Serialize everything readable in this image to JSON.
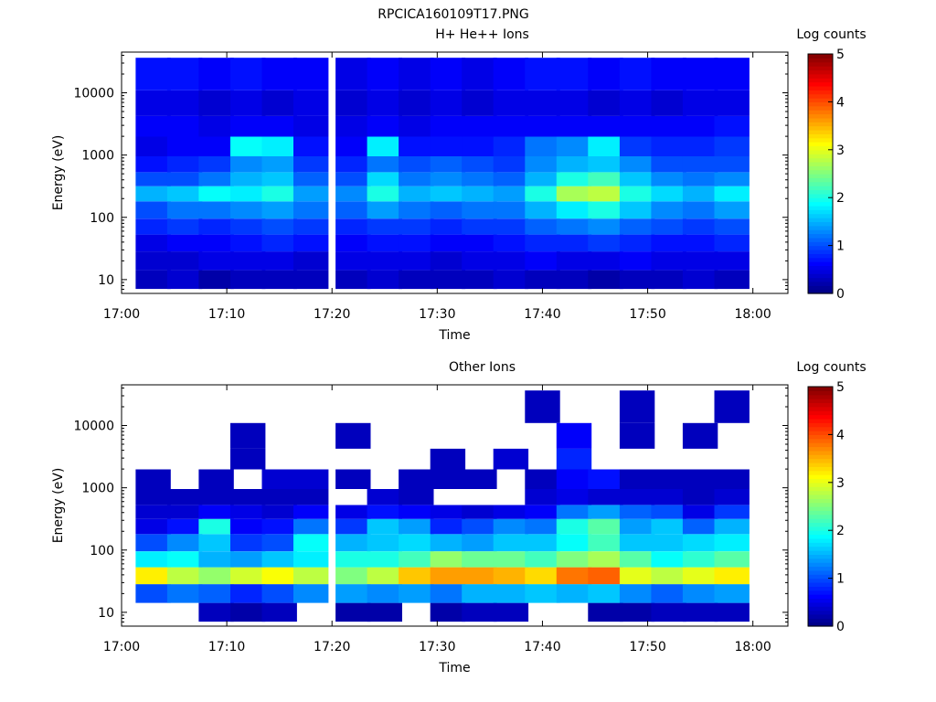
{
  "figure_title": "RPCICA160109T17.PNG",
  "chart_data": [
    {
      "type": "heatmap",
      "title": "H+ He++ Ions",
      "xlabel": "Time",
      "ylabel": "Energy (eV)",
      "x_ticks": [
        "17:00",
        "17:10",
        "17:20",
        "17:30",
        "17:40",
        "17:50",
        "18:00"
      ],
      "y_ticks": [
        "10",
        "100",
        "1000",
        "10000"
      ],
      "y_scale": "log",
      "ylim": [
        6,
        45000
      ],
      "colorbar": {
        "label": "Log counts",
        "min": 0,
        "max": 5,
        "ticks": [
          "0",
          "1",
          "2",
          "3",
          "4",
          "5"
        ]
      },
      "time_bins": [
        "17:03",
        "17:06",
        "17:09",
        "17:12",
        "17:15",
        "17:18",
        "17:22",
        "17:25",
        "17:28",
        "17:31",
        "17:34",
        "17:37",
        "17:40",
        "17:43",
        "17:46",
        "17:49",
        "17:52",
        "17:55",
        "17:58"
      ],
      "energy_bins_eV": [
        10,
        20,
        40,
        70,
        130,
        250,
        400,
        700,
        1300,
        3000,
        6000,
        20000
      ],
      "log_counts": [
        [
          0.3,
          0.4,
          0.5,
          0.8,
          1.0,
          1.5,
          1.0,
          0.7,
          0.5,
          0.6,
          0.5,
          0.7
        ],
        [
          0.4,
          0.4,
          0.6,
          0.9,
          1.2,
          1.6,
          1.0,
          0.8,
          0.6,
          0.6,
          0.5,
          0.7
        ],
        [
          0.2,
          0.5,
          0.6,
          0.8,
          1.2,
          1.9,
          1.2,
          0.9,
          0.6,
          0.5,
          0.4,
          0.6
        ],
        [
          0.3,
          0.5,
          0.7,
          0.9,
          1.3,
          1.8,
          1.5,
          1.3,
          1.9,
          0.6,
          0.5,
          0.7
        ],
        [
          0.3,
          0.5,
          0.8,
          1.0,
          1.4,
          2.0,
          1.6,
          1.4,
          1.8,
          0.6,
          0.4,
          0.6
        ],
        [
          0.3,
          0.4,
          0.7,
          0.9,
          1.2,
          1.4,
          1.1,
          0.9,
          0.7,
          0.5,
          0.5,
          0.6
        ],
        [
          0.3,
          0.5,
          0.6,
          0.8,
          1.1,
          1.3,
          1.0,
          0.8,
          0.6,
          0.5,
          0.4,
          0.5
        ],
        [
          0.4,
          0.5,
          0.7,
          0.9,
          1.4,
          2.0,
          1.7,
          1.2,
          1.8,
          0.6,
          0.5,
          0.6
        ],
        [
          0.3,
          0.5,
          0.7,
          0.9,
          1.2,
          1.5,
          1.2,
          1.0,
          0.7,
          0.5,
          0.4,
          0.5
        ],
        [
          0.3,
          0.4,
          0.6,
          0.8,
          1.1,
          1.6,
          1.3,
          1.1,
          0.7,
          0.6,
          0.5,
          0.6
        ],
        [
          0.3,
          0.5,
          0.6,
          0.9,
          1.2,
          1.5,
          1.2,
          1.0,
          0.7,
          0.6,
          0.4,
          0.5
        ],
        [
          0.4,
          0.5,
          0.7,
          0.9,
          1.2,
          1.4,
          1.1,
          0.9,
          0.8,
          0.6,
          0.5,
          0.6
        ],
        [
          0.3,
          0.6,
          0.8,
          1.1,
          1.5,
          2.0,
          1.5,
          1.3,
          1.2,
          0.6,
          0.5,
          0.7
        ],
        [
          0.3,
          0.5,
          0.8,
          1.2,
          1.8,
          2.7,
          2.0,
          1.5,
          1.3,
          0.6,
          0.5,
          0.7
        ],
        [
          0.2,
          0.5,
          0.9,
          1.3,
          2.0,
          2.8,
          2.2,
          1.6,
          1.8,
          0.6,
          0.4,
          0.6
        ],
        [
          0.3,
          0.6,
          0.8,
          1.1,
          1.6,
          2.0,
          1.6,
          1.3,
          0.9,
          0.6,
          0.5,
          0.7
        ],
        [
          0.3,
          0.5,
          0.7,
          1.0,
          1.3,
          1.7,
          1.3,
          1.0,
          0.8,
          0.6,
          0.4,
          0.6
        ],
        [
          0.4,
          0.5,
          0.7,
          0.9,
          1.2,
          1.5,
          1.2,
          1.0,
          0.8,
          0.6,
          0.5,
          0.6
        ],
        [
          0.3,
          0.5,
          0.8,
          1.0,
          1.4,
          1.8,
          1.3,
          1.0,
          0.9,
          0.7,
          0.5,
          0.6
        ]
      ]
    },
    {
      "type": "heatmap",
      "title": "Other Ions",
      "xlabel": "Time",
      "ylabel": "Energy (eV)",
      "x_ticks": [
        "17:00",
        "17:10",
        "17:20",
        "17:30",
        "17:40",
        "17:50",
        "18:00"
      ],
      "y_ticks": [
        "10",
        "100",
        "1000",
        "10000"
      ],
      "y_scale": "log",
      "ylim": [
        6,
        45000
      ],
      "colorbar": {
        "label": "Log counts",
        "min": 0,
        "max": 5,
        "ticks": [
          "0",
          "1",
          "2",
          "3",
          "4",
          "5"
        ]
      },
      "time_bins": [
        "17:03",
        "17:06",
        "17:09",
        "17:12",
        "17:15",
        "17:18",
        "17:22",
        "17:25",
        "17:28",
        "17:31",
        "17:34",
        "17:37",
        "17:40",
        "17:43",
        "17:46",
        "17:49",
        "17:52",
        "17:55",
        "17:58"
      ],
      "energy_bins_eV": [
        10,
        20,
        40,
        70,
        130,
        250,
        400,
        700,
        1300,
        3000,
        6000,
        20000
      ],
      "log_counts": [
        [
          null,
          1.0,
          3.2,
          1.8,
          1.0,
          0.5,
          0.4,
          0.3,
          0.3,
          null,
          null,
          null
        ],
        [
          null,
          1.2,
          2.8,
          1.9,
          1.3,
          0.7,
          0.4,
          0.3,
          null,
          null,
          null,
          null
        ],
        [
          0.3,
          1.1,
          2.6,
          1.5,
          1.6,
          2.0,
          0.6,
          0.3,
          0.3,
          null,
          null,
          null
        ],
        [
          0.2,
          0.8,
          2.9,
          1.4,
          0.9,
          0.6,
          0.5,
          0.3,
          null,
          0.3,
          0.3,
          null
        ],
        [
          0.3,
          1.0,
          3.1,
          1.6,
          1.0,
          0.7,
          0.4,
          0.3,
          0.4,
          null,
          null,
          null
        ],
        [
          null,
          1.3,
          2.8,
          1.8,
          1.9,
          1.2,
          0.6,
          0.3,
          0.4,
          null,
          null,
          null
        ],
        [
          0.2,
          1.4,
          2.5,
          2.0,
          1.5,
          0.9,
          0.5,
          null,
          0.3,
          null,
          0.3,
          null
        ],
        [
          0.2,
          1.3,
          2.8,
          2.0,
          1.6,
          1.6,
          0.7,
          0.4,
          null,
          null,
          null,
          null
        ],
        [
          null,
          1.4,
          3.4,
          2.2,
          1.7,
          1.4,
          0.6,
          0.3,
          0.3,
          null,
          null,
          null
        ],
        [
          0.2,
          1.2,
          3.6,
          2.6,
          1.5,
          0.8,
          0.5,
          null,
          0.3,
          0.3,
          null,
          null
        ],
        [
          0.3,
          1.5,
          3.6,
          2.4,
          1.4,
          1.0,
          0.4,
          null,
          0.3,
          null,
          null,
          null
        ],
        [
          0.3,
          1.5,
          3.5,
          2.4,
          1.6,
          1.3,
          0.5,
          null,
          null,
          0.4,
          null,
          null
        ],
        [
          null,
          1.6,
          3.3,
          2.2,
          1.6,
          1.2,
          0.6,
          0.4,
          0.3,
          null,
          null,
          0.3
        ],
        [
          null,
          1.5,
          3.8,
          2.5,
          1.9,
          2.0,
          1.2,
          0.5,
          0.6,
          0.8,
          0.6,
          null
        ],
        [
          0.2,
          1.6,
          3.9,
          2.7,
          2.2,
          2.3,
          1.4,
          0.4,
          0.7,
          null,
          null,
          null
        ],
        [
          0.2,
          1.3,
          3.0,
          2.3,
          1.6,
          1.4,
          1.1,
          0.4,
          0.3,
          null,
          0.3,
          0.3
        ],
        [
          0.3,
          1.1,
          2.8,
          1.9,
          1.6,
          1.6,
          1.0,
          0.4,
          0.3,
          null,
          null,
          null
        ],
        [
          0.3,
          1.3,
          3.0,
          2.1,
          1.7,
          1.1,
          0.5,
          0.3,
          0.3,
          null,
          0.3,
          null
        ],
        [
          0.3,
          1.4,
          3.2,
          2.3,
          1.8,
          1.5,
          0.9,
          0.4,
          0.3,
          null,
          null,
          0.3
        ]
      ]
    }
  ]
}
